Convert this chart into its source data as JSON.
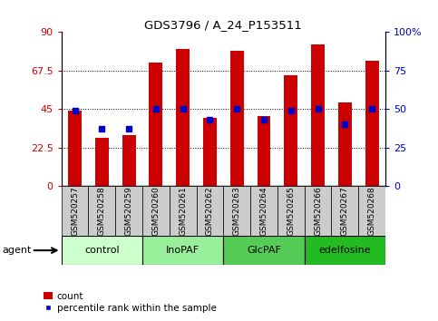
{
  "title": "GDS3796 / A_24_P153511",
  "categories": [
    "GSM520257",
    "GSM520258",
    "GSM520259",
    "GSM520260",
    "GSM520261",
    "GSM520262",
    "GSM520263",
    "GSM520264",
    "GSM520265",
    "GSM520266",
    "GSM520267",
    "GSM520268"
  ],
  "bar_values": [
    44,
    28,
    30,
    72,
    80,
    40,
    79,
    41,
    65,
    83,
    49,
    73
  ],
  "percentile_values": [
    49,
    37,
    37,
    50,
    50,
    43,
    50,
    43,
    49,
    50,
    40,
    50
  ],
  "bar_color": "#cc0000",
  "percentile_color": "#0000cc",
  "left_ylim": [
    0,
    90
  ],
  "right_ylim": [
    0,
    100
  ],
  "left_yticks": [
    0,
    22.5,
    45,
    67.5,
    90
  ],
  "right_yticks": [
    0,
    25,
    50,
    75,
    100
  ],
  "left_yticklabels": [
    "0",
    "22.5",
    "45",
    "67.5",
    "90"
  ],
  "right_yticklabels": [
    "0",
    "25",
    "50",
    "75",
    "100%"
  ],
  "groups": [
    {
      "label": "control",
      "start": 0,
      "end": 3,
      "color": "#ccffcc"
    },
    {
      "label": "InoPAF",
      "start": 3,
      "end": 6,
      "color": "#88ee88"
    },
    {
      "label": "GlcPAF",
      "start": 6,
      "end": 9,
      "color": "#55cc55"
    },
    {
      "label": "edelfosine",
      "start": 9,
      "end": 12,
      "color": "#22bb22"
    }
  ],
  "agent_label": "agent",
  "legend_count_label": "count",
  "legend_percentile_label": "percentile rank within the sample",
  "background_color": "#ffffff",
  "tick_label_color_left": "#cc0000",
  "tick_label_color_right": "#0000cc",
  "xtick_box_color": "#cccccc"
}
